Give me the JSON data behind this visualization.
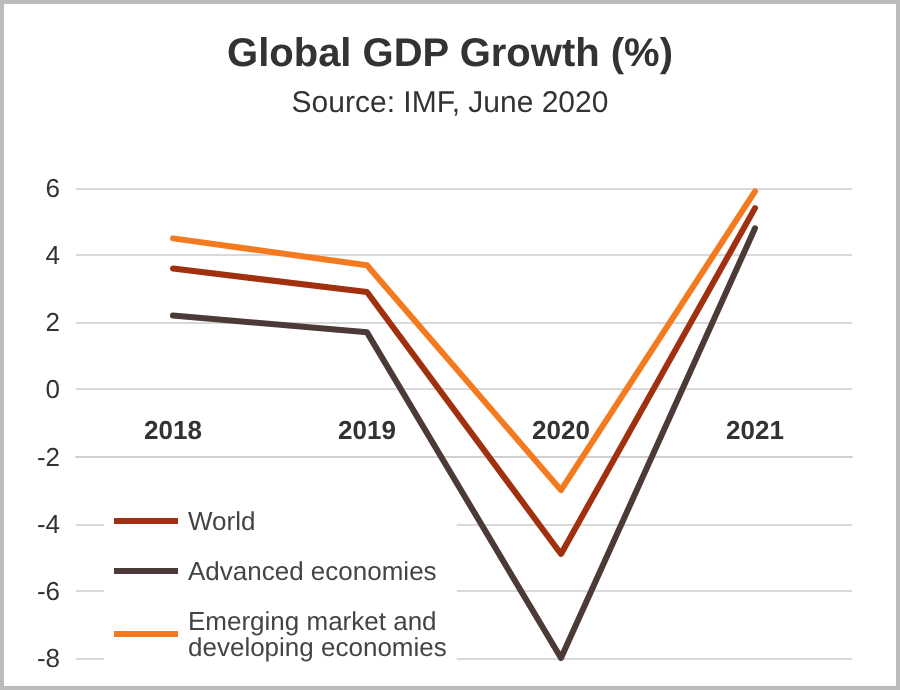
{
  "chart_data": {
    "type": "line",
    "title": "Global GDP Growth (%)",
    "annotations": [
      "Source: IMF, June 2020"
    ],
    "categories": [
      "2018",
      "2019",
      "2020",
      "2021"
    ],
    "series": [
      {
        "name": "World",
        "color": "#a0300e",
        "values": [
          3.6,
          2.9,
          -4.9,
          5.4
        ]
      },
      {
        "name": "Advanced economies",
        "color": "#4b3a37",
        "values": [
          2.2,
          1.7,
          -8.0,
          4.8
        ]
      },
      {
        "name": "Emerging market and developing economies",
        "color": "#f47a20",
        "values": [
          4.5,
          3.7,
          -3.0,
          5.9
        ]
      }
    ],
    "ylim": [
      -8,
      6
    ],
    "yticks": [
      -8,
      -6,
      -4,
      -2,
      0,
      2,
      4,
      6
    ],
    "grid": "y",
    "legend": "bottom left",
    "marker": "none",
    "line_style": "solid"
  }
}
